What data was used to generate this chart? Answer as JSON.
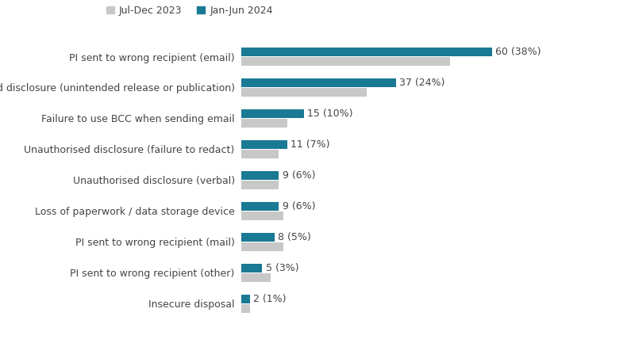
{
  "categories": [
    "PI sent to wrong recipient (email)",
    "Unauthorised disclosure (unintended release or publication)",
    "Failure to use BCC when sending email",
    "Unauthorised disclosure (failure to redact)",
    "Unauthorised disclosure (verbal)",
    "Loss of paperwork / data storage device",
    "PI sent to wrong recipient (mail)",
    "PI sent to wrong recipient (other)",
    "Insecure disposal"
  ],
  "values_2024": [
    60,
    37,
    15,
    11,
    9,
    9,
    8,
    5,
    2
  ],
  "labels_2024": [
    "60 (38%)",
    "37 (24%)",
    "15 (10%)",
    "11 (7%)",
    "9 (6%)",
    "9 (6%)",
    "8 (5%)",
    "5 (3%)",
    "2 (1%)"
  ],
  "values_2023": [
    50,
    30,
    11,
    9,
    9,
    10,
    10,
    7,
    2
  ],
  "color_2024": "#1a7a94",
  "color_2023": "#c8c8c8",
  "background_color": "#ffffff",
  "legend_label_2023": "Jul-Dec 2023",
  "legend_label_2024": "Jan-Jun 2024",
  "label_fontsize": 9,
  "tick_fontsize": 9,
  "legend_fontsize": 9
}
